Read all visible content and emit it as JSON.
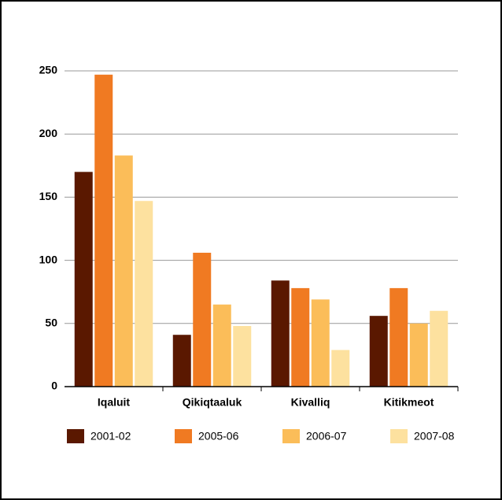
{
  "chart_data": {
    "type": "bar",
    "categories": [
      "Iqaluit",
      "Qikiqtaaluk",
      "Kivalliq",
      "Kitikmeot"
    ],
    "series": [
      {
        "name": "2001-02",
        "color": "#5a1800",
        "values": [
          170,
          41,
          84,
          56
        ]
      },
      {
        "name": "2005-06",
        "color": "#f07a22",
        "values": [
          247,
          106,
          78,
          78
        ]
      },
      {
        "name": "2006-07",
        "color": "#fbbd59",
        "values": [
          183,
          65,
          69,
          50
        ]
      },
      {
        "name": "2007-08",
        "color": "#fde19f",
        "values": [
          147,
          48,
          29,
          60
        ]
      }
    ],
    "ylim": [
      0,
      250
    ],
    "yticks": [
      0,
      50,
      100,
      150,
      200,
      250
    ],
    "grid": true,
    "legend": "bottom"
  }
}
